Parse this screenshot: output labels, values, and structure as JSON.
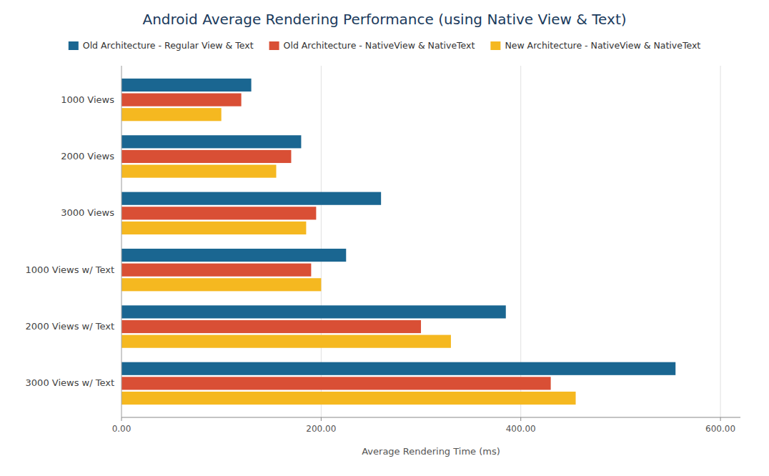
{
  "chart_data": {
    "type": "bar",
    "orientation": "horizontal",
    "title": "Android Average Rendering Performance (using Native View & Text)",
    "xlabel": "Average Rendering Time (ms)",
    "categories": [
      "3000 Views w/ Text",
      "2000 Views w/ Text",
      "1000 Views w/ Text",
      "3000 Views",
      "2000 Views",
      "1000 Views"
    ],
    "series": [
      {
        "name": "Old Architecture - Regular View & Text",
        "color": "#1a6691",
        "values": [
          555,
          385,
          225,
          260,
          180,
          130
        ]
      },
      {
        "name": "Old Architecture - NativeView & NativeText",
        "color": "#d94f35",
        "values": [
          430,
          300,
          190,
          195,
          170,
          120
        ]
      },
      {
        "name": "New Architecture - NativeView & NativeText",
        "color": "#f5b820",
        "values": [
          455,
          330,
          200,
          185,
          155,
          100
        ]
      }
    ],
    "xlim": [
      0,
      620
    ],
    "xticks": [
      {
        "value": 0,
        "label": "0.00"
      },
      {
        "value": 200,
        "label": "200.00"
      },
      {
        "value": 400,
        "label": "400.00"
      },
      {
        "value": 600,
        "label": "600.00"
      }
    ],
    "grid": true,
    "legend": "top"
  }
}
